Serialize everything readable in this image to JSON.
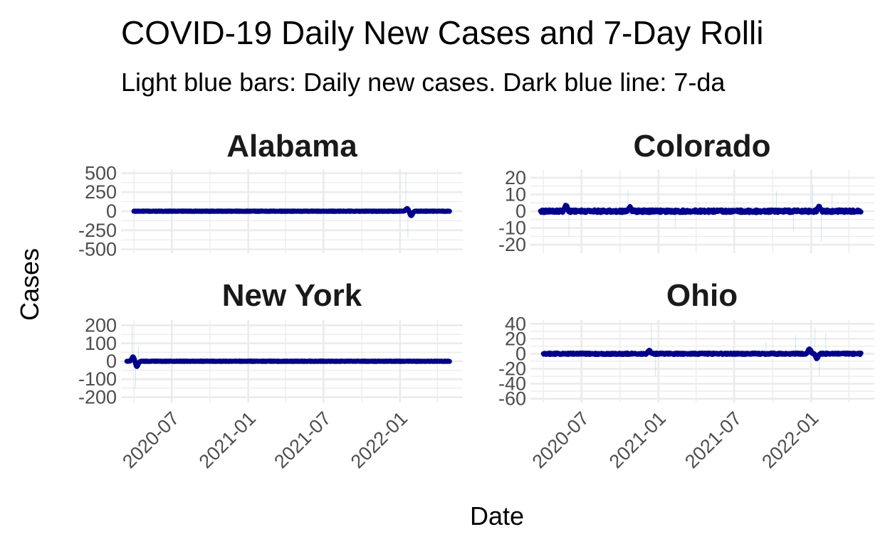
{
  "chart_data": {
    "type": "bar",
    "title": "COVID-19 Daily New Cases and 7-Day Rolli",
    "subtitle": "Light blue bars: Daily new cases. Dark blue line: 7-da",
    "xlabel": "Date",
    "ylabel": "Cases",
    "colors": {
      "bars": "#a6cee3",
      "line": "#00008b",
      "grid": "#ebebeb",
      "text": "#4d4d4d"
    },
    "x_ticks": [
      "2020-07",
      "2021-01",
      "2021-07",
      "2022-01"
    ],
    "x_range": [
      "2020-03-01",
      "2022-06-01"
    ],
    "grid": true,
    "legend": "none",
    "panels": [
      {
        "state": "Alabama",
        "ylim": [
          -550,
          550
        ],
        "y_ticks": [
          500,
          250,
          0,
          -250,
          -500
        ],
        "y_tick_labels": [
          "500",
          "250",
          "0",
          "-250",
          "-500"
        ],
        "x_start": "2020-04-01",
        "x_end": "2022-04-30",
        "daily_amplitude": 12,
        "rolling_amplitude": 3,
        "daily_spikes": [
          {
            "date": "2022-01-15",
            "value": 500
          },
          {
            "date": "2022-01-20",
            "value": -350
          },
          {
            "date": "2022-02-01",
            "value": 100
          }
        ],
        "rolling_events": [
          {
            "date": "2022-01-18",
            "value": 35
          },
          {
            "date": "2022-01-28",
            "value": -60
          }
        ]
      },
      {
        "state": "Colorado",
        "ylim": [
          -25,
          25
        ],
        "y_ticks": [
          20,
          10,
          0,
          -10,
          -20
        ],
        "y_tick_labels": [
          "20",
          "10",
          "0",
          "-10",
          "-20"
        ],
        "x_start": "2020-03-25",
        "x_end": "2022-04-30",
        "daily_amplitude": 3,
        "rolling_amplitude": 0.8,
        "daily_spikes": [
          {
            "date": "2020-06-01",
            "value": -15
          },
          {
            "date": "2020-10-20",
            "value": 13
          },
          {
            "date": "2021-02-10",
            "value": -10
          },
          {
            "date": "2021-10-10",
            "value": 12
          },
          {
            "date": "2021-11-20",
            "value": -12
          },
          {
            "date": "2022-01-05",
            "value": 16
          },
          {
            "date": "2022-01-25",
            "value": -18
          },
          {
            "date": "2022-02-20",
            "value": 10
          }
        ],
        "rolling_events": [
          {
            "date": "2020-05-25",
            "value": 3
          },
          {
            "date": "2020-10-25",
            "value": 2
          },
          {
            "date": "2022-01-20",
            "value": 2.5
          }
        ]
      },
      {
        "state": "New York",
        "ylim": [
          -230,
          230
        ],
        "y_ticks": [
          200,
          100,
          0,
          -100,
          -200
        ],
        "y_tick_labels": [
          "200",
          "100",
          "0",
          "-100",
          "-200"
        ],
        "x_start": "2020-03-15",
        "x_end": "2022-04-30",
        "daily_amplitude": 3,
        "rolling_amplitude": 1.2,
        "daily_spikes": [
          {
            "date": "2020-03-28",
            "value": 200
          },
          {
            "date": "2020-04-05",
            "value": -150
          },
          {
            "date": "2020-04-12",
            "value": 80
          }
        ],
        "rolling_events": [
          {
            "date": "2020-03-30",
            "value": 25
          },
          {
            "date": "2020-04-08",
            "value": -30
          }
        ]
      },
      {
        "state": "Ohio",
        "ylim": [
          -65,
          45
        ],
        "y_ticks": [
          40,
          20,
          0,
          -20,
          -40,
          -60
        ],
        "y_tick_labels": [
          "40",
          "20",
          "0",
          "-20",
          "-40",
          "-60"
        ],
        "x_start": "2020-04-01",
        "x_end": "2022-04-30",
        "daily_amplitude": 4,
        "rolling_amplitude": 1,
        "daily_spikes": [
          {
            "date": "2020-12-15",
            "value": 40
          },
          {
            "date": "2020-12-25",
            "value": -30
          },
          {
            "date": "2021-09-15",
            "value": 15
          },
          {
            "date": "2021-11-25",
            "value": 25
          },
          {
            "date": "2022-01-10",
            "value": 35
          },
          {
            "date": "2022-01-20",
            "value": -30
          },
          {
            "date": "2022-02-05",
            "value": 28
          }
        ],
        "rolling_events": [
          {
            "date": "2020-12-10",
            "value": 4
          },
          {
            "date": "2021-12-28",
            "value": 6
          },
          {
            "date": "2022-01-15",
            "value": -6
          }
        ]
      }
    ]
  }
}
